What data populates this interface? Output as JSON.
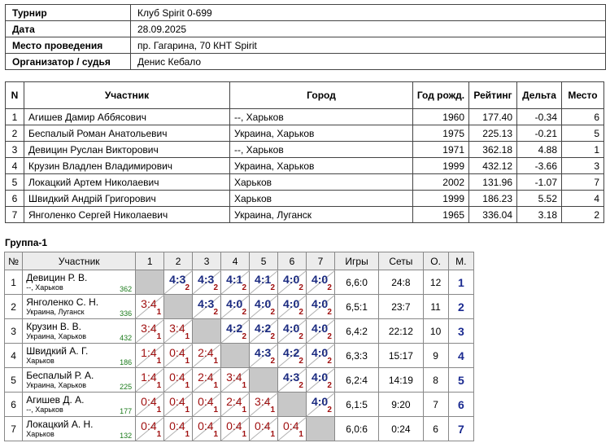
{
  "info": [
    {
      "key": "Турнир",
      "value": "Клуб Spirit 0-699"
    },
    {
      "key": "Дата",
      "value": "28.09.2025"
    },
    {
      "key": "Место проведения",
      "value": "пр. Гагарина, 70 КНТ Spirit"
    },
    {
      "key": "Организатор / судья",
      "value": "Денис Кебало"
    }
  ],
  "players_table": {
    "headers": [
      "N",
      "Участник",
      "Город",
      "Год рожд.",
      "Рейтинг",
      "Дельта",
      "Место"
    ],
    "rows": [
      {
        "n": "1",
        "name": "Агишев Дамир Аббясович",
        "city": "--, Харьков",
        "year": "1960",
        "rating": "177.40",
        "delta": "-0.34",
        "place": "6"
      },
      {
        "n": "2",
        "name": "Беспалый Роман Анатольевич",
        "city": "Украина, Харьков",
        "year": "1975",
        "rating": "225.13",
        "delta": "-0.21",
        "place": "5"
      },
      {
        "n": "3",
        "name": "Девицин Руслан Викторович",
        "city": "--, Харьков",
        "year": "1971",
        "rating": "362.18",
        "delta": "4.88",
        "place": "1"
      },
      {
        "n": "4",
        "name": "Крузин Владлен Владимирович",
        "city": "Украина, Харьков",
        "year": "1999",
        "rating": "432.12",
        "delta": "-3.66",
        "place": "3"
      },
      {
        "n": "5",
        "name": "Локацкий Артем Николаевич",
        "city": "Харьков",
        "year": "2002",
        "rating": "131.96",
        "delta": "-1.07",
        "place": "7"
      },
      {
        "n": "6",
        "name": "Швидкий Андрій Григорович",
        "city": "Харьков",
        "year": "1999",
        "rating": "186.23",
        "delta": "5.52",
        "place": "4"
      },
      {
        "n": "7",
        "name": "Янголенко Сергей Николаевич",
        "city": "Украина, Луганск",
        "year": "1965",
        "rating": "336.04",
        "delta": "3.18",
        "place": "2"
      }
    ]
  },
  "group": {
    "title": "Группа-1",
    "headers": [
      "№",
      "Участник",
      "1",
      "2",
      "3",
      "4",
      "5",
      "6",
      "7",
      "Игры",
      "Сеты",
      "О.",
      "М."
    ],
    "rows": [
      {
        "n": "1",
        "name": "Девицин Р. В.",
        "city": "--, Харьков",
        "rating": "362",
        "games": "6,6:0",
        "sets": "24:8",
        "points": "12",
        "place": "1",
        "cells": [
          null,
          {
            "s": "4:3",
            "p": "2",
            "w": true
          },
          {
            "s": "4:3",
            "p": "2",
            "w": true
          },
          {
            "s": "4:1",
            "p": "2",
            "w": true
          },
          {
            "s": "4:1",
            "p": "2",
            "w": true
          },
          {
            "s": "4:0",
            "p": "2",
            "w": true
          },
          {
            "s": "4:0",
            "p": "2",
            "w": true
          }
        ]
      },
      {
        "n": "2",
        "name": "Янголенко С. Н.",
        "city": "Украина, Луганск",
        "rating": "336",
        "games": "6,5:1",
        "sets": "23:7",
        "points": "11",
        "place": "2",
        "cells": [
          {
            "s": "3:4",
            "p": "1",
            "w": false
          },
          null,
          {
            "s": "4:3",
            "p": "2",
            "w": true
          },
          {
            "s": "4:0",
            "p": "2",
            "w": true
          },
          {
            "s": "4:0",
            "p": "2",
            "w": true
          },
          {
            "s": "4:0",
            "p": "2",
            "w": true
          },
          {
            "s": "4:0",
            "p": "2",
            "w": true
          }
        ]
      },
      {
        "n": "3",
        "name": "Крузин В. В.",
        "city": "Украина, Харьков",
        "rating": "432",
        "games": "6,4:2",
        "sets": "22:12",
        "points": "10",
        "place": "3",
        "cells": [
          {
            "s": "3:4",
            "p": "1",
            "w": false
          },
          {
            "s": "3:4",
            "p": "1",
            "w": false
          },
          null,
          {
            "s": "4:2",
            "p": "2",
            "w": true
          },
          {
            "s": "4:2",
            "p": "2",
            "w": true
          },
          {
            "s": "4:0",
            "p": "2",
            "w": true
          },
          {
            "s": "4:0",
            "p": "2",
            "w": true
          }
        ]
      },
      {
        "n": "4",
        "name": "Швидкий А. Г.",
        "city": "Харьков",
        "rating": "186",
        "games": "6,3:3",
        "sets": "15:17",
        "points": "9",
        "place": "4",
        "cells": [
          {
            "s": "1:4",
            "p": "1",
            "w": false
          },
          {
            "s": "0:4",
            "p": "1",
            "w": false
          },
          {
            "s": "2:4",
            "p": "1",
            "w": false
          },
          null,
          {
            "s": "4:3",
            "p": "2",
            "w": true
          },
          {
            "s": "4:2",
            "p": "2",
            "w": true
          },
          {
            "s": "4:0",
            "p": "2",
            "w": true
          }
        ]
      },
      {
        "n": "5",
        "name": "Беспалый Р. А.",
        "city": "Украина, Харьков",
        "rating": "225",
        "games": "6,2:4",
        "sets": "14:19",
        "points": "8",
        "place": "5",
        "cells": [
          {
            "s": "1:4",
            "p": "1",
            "w": false
          },
          {
            "s": "0:4",
            "p": "1",
            "w": false
          },
          {
            "s": "2:4",
            "p": "1",
            "w": false
          },
          {
            "s": "3:4",
            "p": "1",
            "w": false
          },
          null,
          {
            "s": "4:3",
            "p": "2",
            "w": true
          },
          {
            "s": "4:0",
            "p": "2",
            "w": true
          }
        ]
      },
      {
        "n": "6",
        "name": "Агишев Д. А.",
        "city": "--, Харьков",
        "rating": "177",
        "games": "6,1:5",
        "sets": "9:20",
        "points": "7",
        "place": "6",
        "cells": [
          {
            "s": "0:4",
            "p": "1",
            "w": false
          },
          {
            "s": "0:4",
            "p": "1",
            "w": false
          },
          {
            "s": "0:4",
            "p": "1",
            "w": false
          },
          {
            "s": "2:4",
            "p": "1",
            "w": false
          },
          {
            "s": "3:4",
            "p": "1",
            "w": false
          },
          null,
          {
            "s": "4:0",
            "p": "2",
            "w": true
          }
        ]
      },
      {
        "n": "7",
        "name": "Локацкий А. Н.",
        "city": "Харьков",
        "rating": "132",
        "games": "6,0:6",
        "sets": "0:24",
        "points": "6",
        "place": "7",
        "cells": [
          {
            "s": "0:4",
            "p": "1",
            "w": false
          },
          {
            "s": "0:4",
            "p": "1",
            "w": false
          },
          {
            "s": "0:4",
            "p": "1",
            "w": false
          },
          {
            "s": "0:4",
            "p": "1",
            "w": false
          },
          {
            "s": "0:4",
            "p": "1",
            "w": false
          },
          {
            "s": "0:4",
            "p": "1",
            "w": false
          },
          null
        ]
      }
    ]
  }
}
